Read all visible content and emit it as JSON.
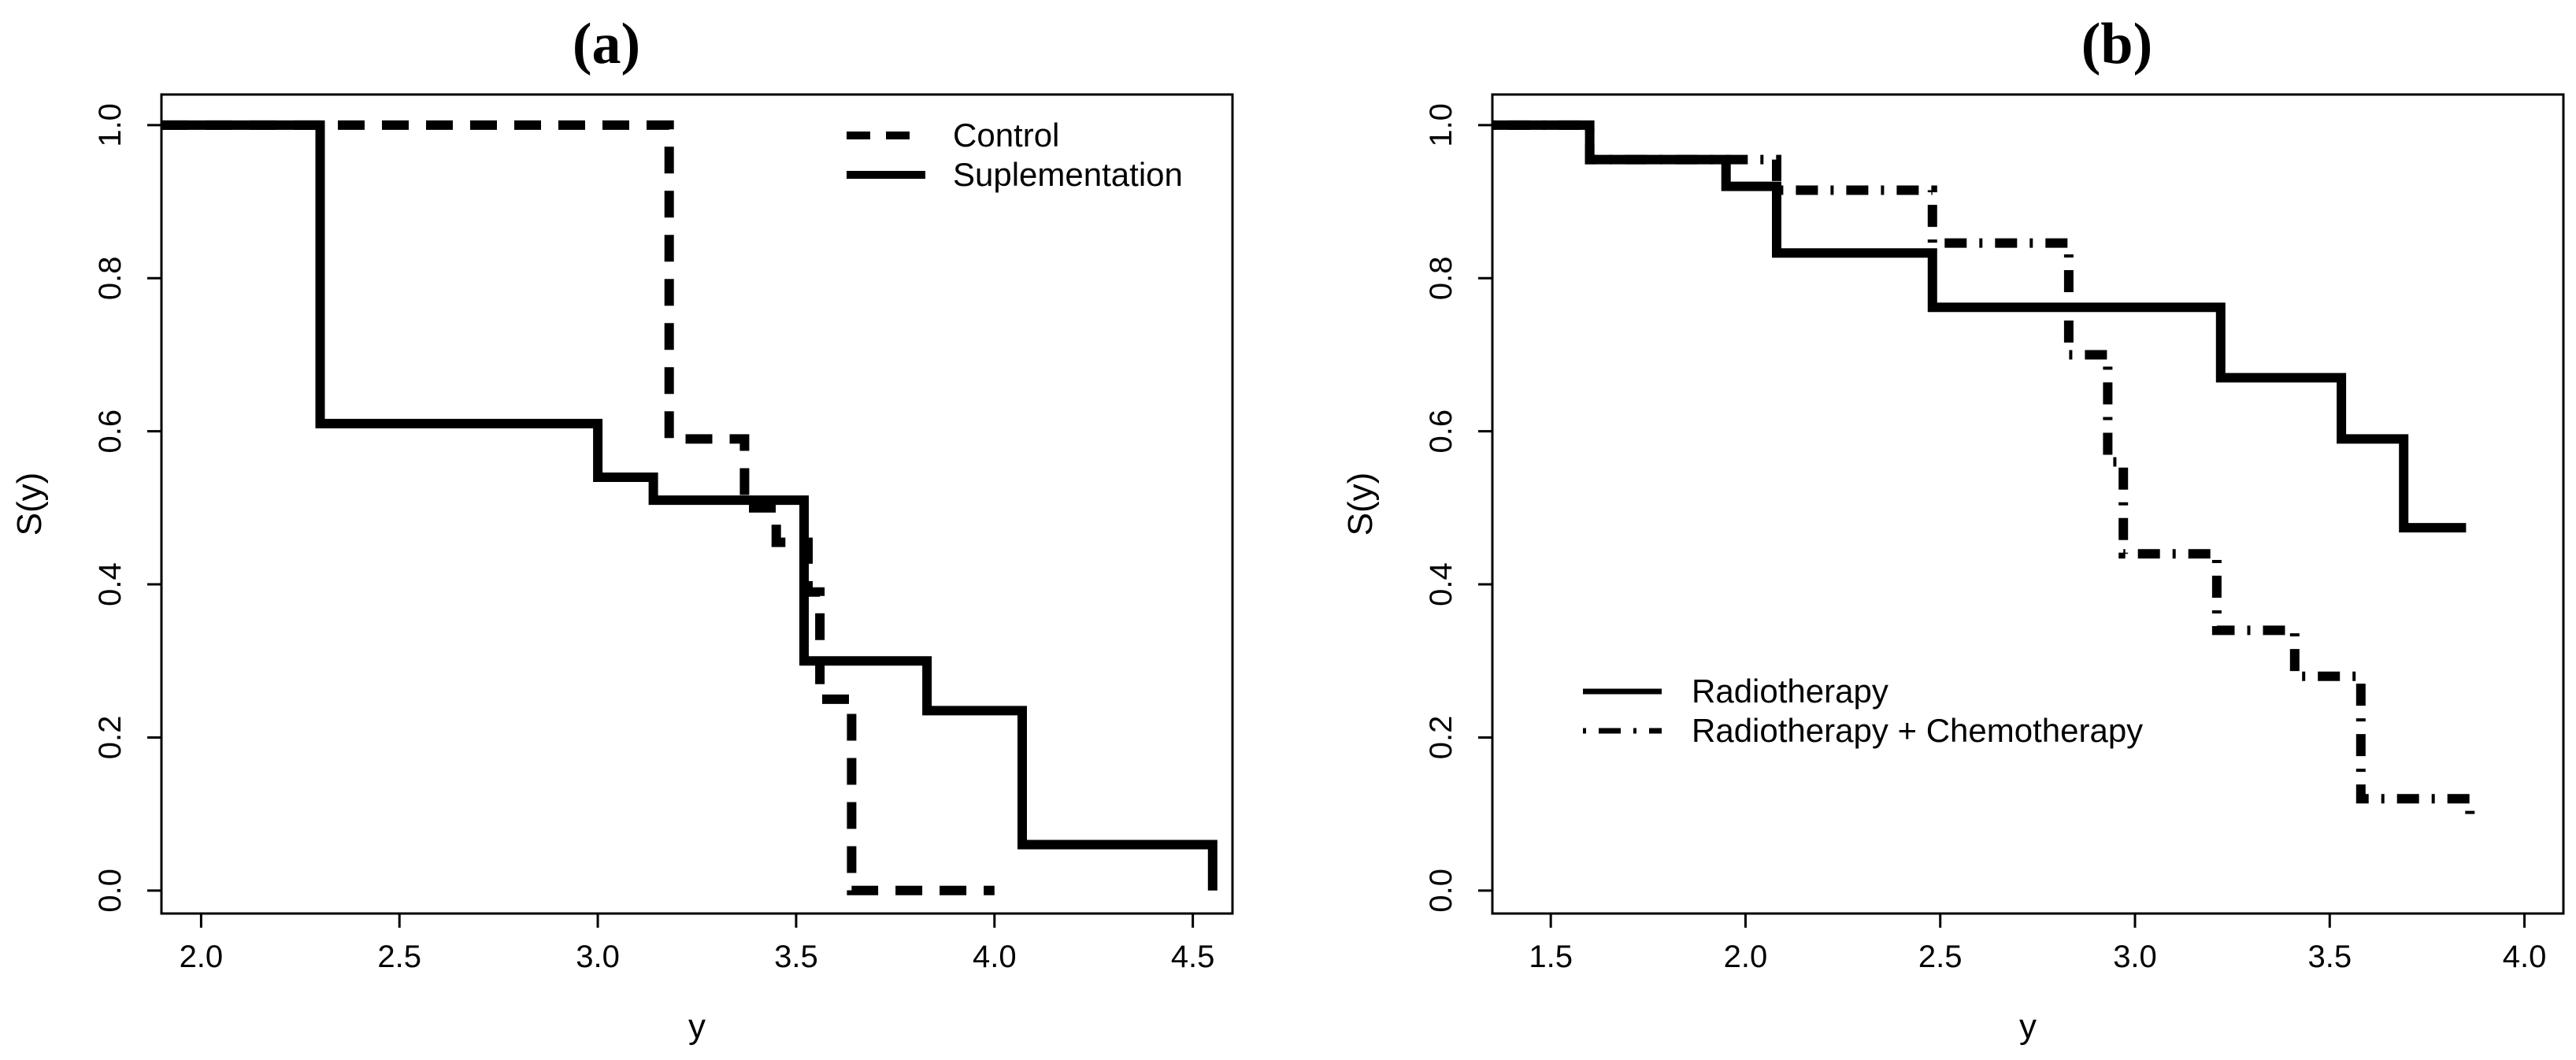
{
  "figure": {
    "panels": [
      "(a)",
      "(b)"
    ]
  },
  "chart_data": [
    {
      "type": "line",
      "step": true,
      "panel_label": "(a)",
      "xlabel": "y",
      "ylabel": "S(y)",
      "xlim": [
        1.9,
        4.6
      ],
      "ylim": [
        -0.03,
        1.04
      ],
      "xticks": [
        2.0,
        2.5,
        3.0,
        3.5,
        4.0,
        4.5
      ],
      "xtick_labels": [
        "2.0",
        "2.5",
        "3.0",
        "3.5",
        "4.0",
        "4.5"
      ],
      "yticks": [
        0.0,
        0.2,
        0.4,
        0.6,
        0.8,
        1.0
      ],
      "ytick_labels": [
        "0.0",
        "0.2",
        "0.4",
        "0.6",
        "0.8",
        "1.0"
      ],
      "grid": false,
      "legend_position": "top-right",
      "series": [
        {
          "name": "Control",
          "style": "dashed",
          "x": [
            1.9,
            3.18,
            3.18,
            3.37,
            3.37,
            3.45,
            3.45,
            3.53,
            3.53,
            3.56,
            3.56,
            3.64,
            3.64,
            4.0
          ],
          "y": [
            1.0,
            1.0,
            0.59,
            0.59,
            0.5,
            0.5,
            0.455,
            0.455,
            0.39,
            0.39,
            0.25,
            0.25,
            0.0,
            0.0
          ]
        },
        {
          "name": "Suplementation",
          "style": "solid",
          "x": [
            1.9,
            2.3,
            2.3,
            3.0,
            3.0,
            3.14,
            3.14,
            3.52,
            3.52,
            3.83,
            3.83,
            4.07,
            4.07,
            4.55,
            4.55
          ],
          "y": [
            1.0,
            1.0,
            0.61,
            0.61,
            0.54,
            0.54,
            0.51,
            0.51,
            0.3,
            0.3,
            0.235,
            0.235,
            0.06,
            0.06,
            0.0
          ]
        }
      ]
    },
    {
      "type": "line",
      "step": true,
      "panel_label": "(b)",
      "xlabel": "y",
      "ylabel": "S(y)",
      "xlim": [
        1.35,
        4.1
      ],
      "ylim": [
        -0.03,
        1.04
      ],
      "xticks": [
        1.5,
        2.0,
        2.5,
        3.0,
        3.5,
        4.0
      ],
      "xtick_labels": [
        "1.5",
        "2.0",
        "2.5",
        "3.0",
        "3.5",
        "4.0"
      ],
      "yticks": [
        0.0,
        0.2,
        0.4,
        0.6,
        0.8,
        1.0
      ],
      "ytick_labels": [
        "0.0",
        "0.2",
        "0.4",
        "0.6",
        "0.8",
        "1.0"
      ],
      "grid": false,
      "legend_position": "bottom-left",
      "series": [
        {
          "name": "Radiotherapy",
          "style": "solid",
          "x": [
            1.35,
            1.6,
            1.6,
            1.95,
            1.95,
            2.08,
            2.08,
            2.48,
            2.48,
            3.22,
            3.22,
            3.53,
            3.53,
            3.69,
            3.69,
            3.85
          ],
          "y": [
            1.0,
            1.0,
            0.955,
            0.955,
            0.92,
            0.92,
            0.833,
            0.833,
            0.762,
            0.762,
            0.67,
            0.67,
            0.59,
            0.59,
            0.474,
            0.474
          ]
        },
        {
          "name": "Radiotherapy + Chemotherapy",
          "style": "dotdash",
          "x": [
            1.35,
            1.6,
            1.6,
            2.08,
            2.08,
            2.48,
            2.48,
            2.83,
            2.83,
            2.93,
            2.93,
            2.97,
            2.97,
            3.21,
            3.21,
            3.41,
            3.41,
            3.58,
            3.58,
            3.86,
            3.86
          ],
          "y": [
            1.0,
            1.0,
            0.955,
            0.955,
            0.915,
            0.915,
            0.846,
            0.846,
            0.7,
            0.7,
            0.56,
            0.56,
            0.44,
            0.44,
            0.34,
            0.34,
            0.28,
            0.28,
            0.12,
            0.12,
            0.09
          ]
        }
      ]
    }
  ]
}
